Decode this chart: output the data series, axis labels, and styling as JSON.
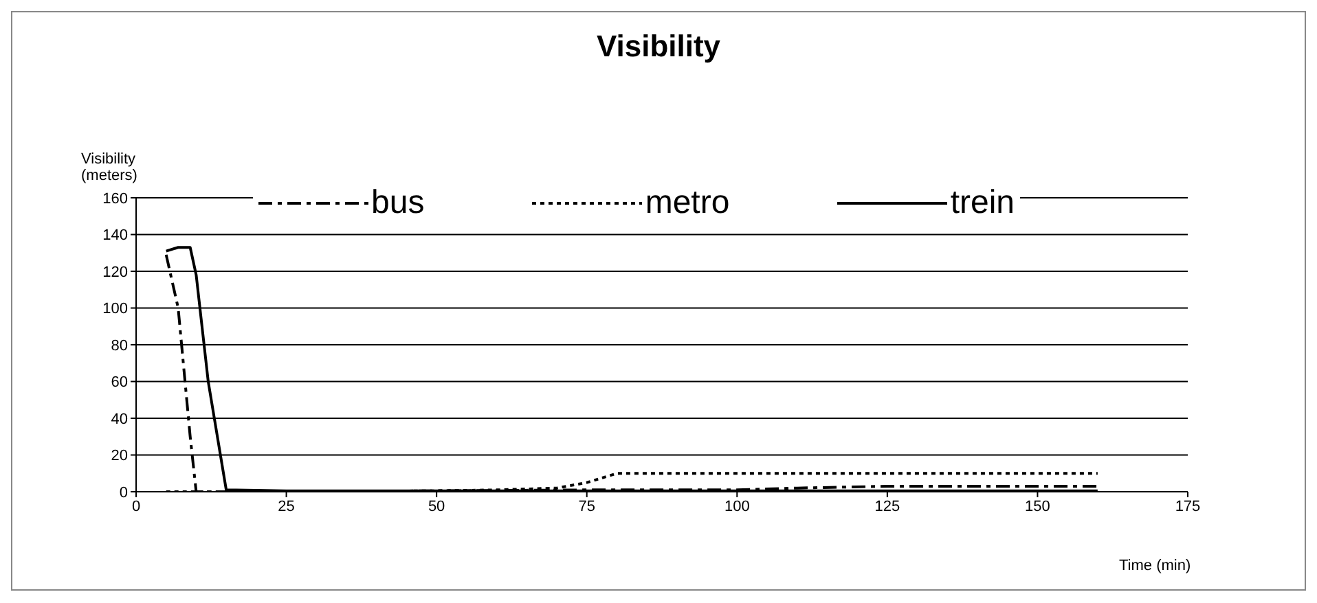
{
  "chart_data": {
    "type": "line",
    "title": "Visibility",
    "ylabel": "Visibility\n(meters)",
    "xlabel": "Time (min)",
    "xlim": [
      0,
      175
    ],
    "xticks": [
      0,
      25,
      50,
      75,
      100,
      125,
      150,
      175
    ],
    "ylim": [
      0,
      160
    ],
    "yticks": [
      0,
      20,
      40,
      60,
      80,
      100,
      120,
      140,
      160
    ],
    "grid": "y",
    "legend": "top",
    "marker": "none",
    "series": [
      {
        "name": "bus",
        "color": "#000000",
        "line_style": "dashdot",
        "x": [
          5,
          7,
          9,
          10,
          15,
          25,
          50,
          75,
          100,
          110,
          125,
          150,
          160
        ],
        "values": [
          129,
          100,
          30,
          0,
          0,
          0,
          0.5,
          1,
          1,
          2,
          3,
          3,
          3
        ]
      },
      {
        "name": "metro",
        "color": "#000000",
        "line_style": "dotted",
        "x": [
          5,
          15,
          25,
          50,
          60,
          70,
          75,
          80,
          100,
          125,
          150,
          160
        ],
        "values": [
          0,
          0,
          0,
          0.5,
          1,
          2,
          5,
          10,
          10,
          10,
          10,
          10
        ]
      },
      {
        "name": "trein",
        "color": "#000000",
        "line_style": "solid",
        "x": [
          5,
          7,
          9,
          10,
          12,
          15,
          25,
          50,
          75,
          100,
          125,
          150,
          160
        ],
        "values": [
          131,
          133,
          133,
          118,
          60,
          1,
          0.5,
          0.5,
          0.5,
          0.5,
          0.5,
          0.5,
          0.5
        ]
      }
    ]
  }
}
